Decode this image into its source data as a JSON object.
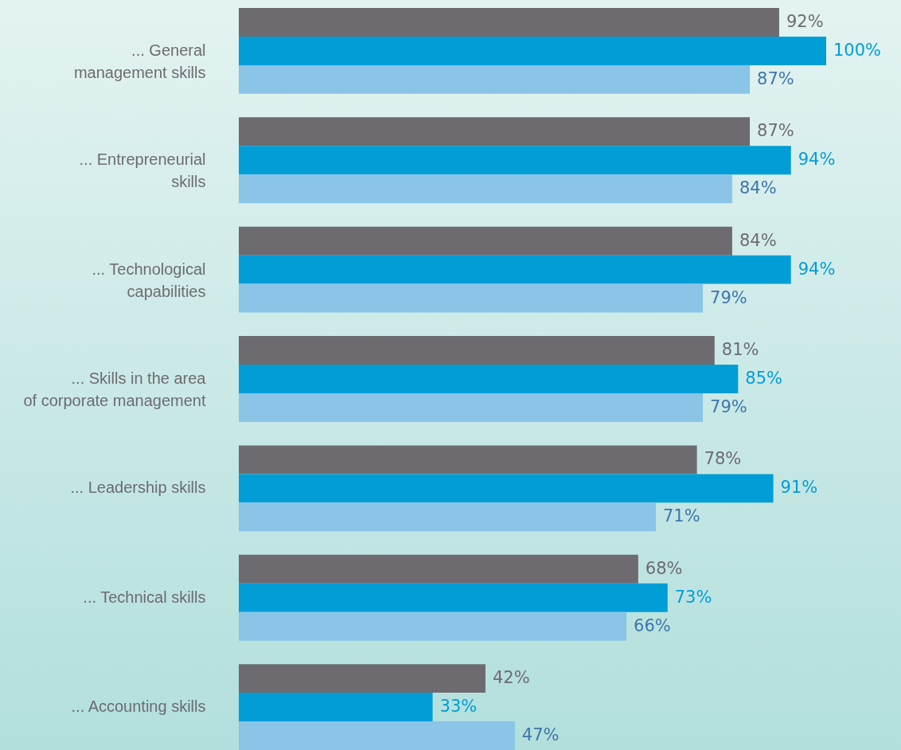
{
  "chart_data": {
    "type": "bar",
    "orientation": "horizontal",
    "categories": [
      "... General management skills",
      "... Entrepreneurial skills",
      "... Technological capabilities",
      "... Skills in the area of corporate management",
      "... Leadership skills",
      "... Technical skills",
      "... Accounting skills"
    ],
    "series": [
      {
        "color": "#6d6b70",
        "values": [
          92,
          87,
          84,
          81,
          78,
          68,
          42
        ],
        "value_labels": [
          "92%",
          "87%",
          "84%",
          "81%",
          "78%",
          "68%",
          "42%"
        ]
      },
      {
        "color": "#009dd6",
        "values": [
          100,
          94,
          94,
          85,
          91,
          73,
          33
        ],
        "value_labels": [
          "100%",
          "94%",
          "94%",
          "85%",
          "91%",
          "73%",
          "33%"
        ]
      },
      {
        "color": "#8ac4e6",
        "values": [
          87,
          84,
          79,
          79,
          71,
          66,
          47
        ],
        "value_labels": [
          "87%",
          "84%",
          "79%",
          "79%",
          "71%",
          "66%",
          "47%"
        ]
      }
    ]
  }
}
